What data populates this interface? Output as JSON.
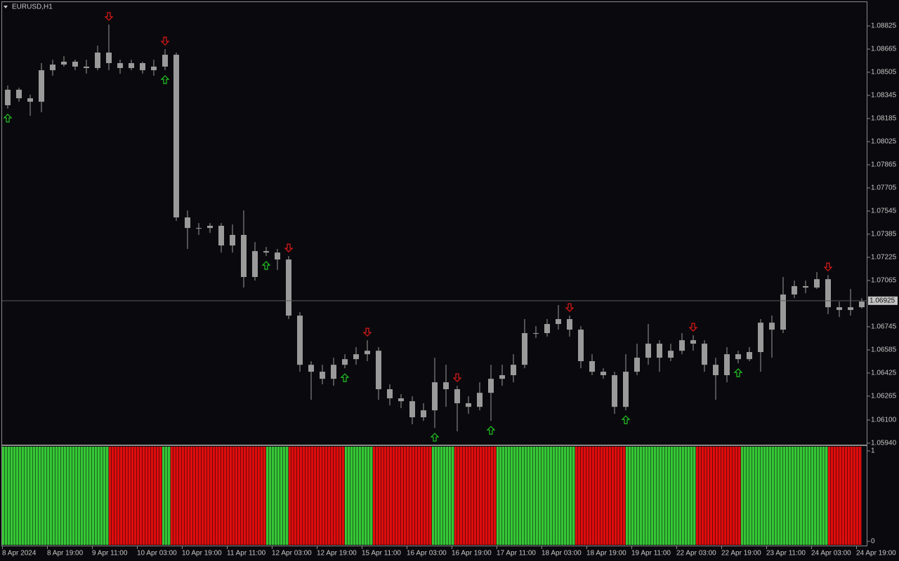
{
  "chart_data": [
    {
      "type": "candlestick",
      "title": "EURUSD,H1",
      "color": "#9a9a9a",
      "open": [
        1.08277,
        1.08384,
        1.08325,
        1.08301,
        1.08519,
        1.08558,
        1.08578,
        1.08544,
        1.08534,
        1.08641,
        1.08568,
        1.08534,
        1.08568,
        1.08519,
        1.08544,
        1.08626,
        1.07501,
        1.07428,
        1.07428,
        1.07443,
        1.07307,
        1.0738,
        1.07089,
        1.07268,
        1.07258,
        1.0721,
        1.06822,
        1.06482,
        1.06434,
        1.06385,
        1.06482,
        1.06521,
        1.06555,
        1.06579,
        1.06313,
        1.0625,
        1.0623,
        1.06119,
        1.06167,
        1.06361,
        1.06313,
        1.06216,
        1.06191,
        1.06288,
        1.06385,
        1.0641,
        1.06482,
        1.06701,
        1.06701,
        1.06764,
        1.06798,
        1.06725,
        1.06507,
        1.06434,
        1.0641,
        1.06191,
        1.06434,
        1.06531,
        1.06628,
        1.06531,
        1.06579,
        1.06652,
        1.06628,
        1.06482,
        1.0641,
        1.06555,
        1.06521,
        1.0657,
        1.06773,
        1.06725,
        1.06968,
        1.07026,
        1.07016,
        1.07074,
        1.0688,
        1.06861,
        1.0688
      ],
      "high": [
        1.08413,
        1.08398,
        1.0835,
        1.08568,
        1.08592,
        1.08616,
        1.08592,
        1.08592,
        1.08689,
        1.08835,
        1.08592,
        1.08592,
        1.08578,
        1.08592,
        1.08665,
        1.08641,
        1.07549,
        1.07462,
        1.07462,
        1.07462,
        1.07452,
        1.07549,
        1.07331,
        1.07297,
        1.07283,
        1.07234,
        1.06846,
        1.06507,
        1.06482,
        1.06531,
        1.06555,
        1.06604,
        1.06652,
        1.06604,
        1.06347,
        1.06279,
        1.06264,
        1.06216,
        1.06531,
        1.06482,
        1.06337,
        1.06264,
        1.06361,
        1.06482,
        1.06482,
        1.06555,
        1.06798,
        1.06749,
        1.06798,
        1.06895,
        1.06822,
        1.06749,
        1.06555,
        1.06458,
        1.06434,
        1.06555,
        1.06628,
        1.06764,
        1.06652,
        1.06628,
        1.06701,
        1.06686,
        1.06652,
        1.06531,
        1.06604,
        1.06579,
        1.06604,
        1.06798,
        1.06822,
        1.07089,
        1.07064,
        1.07064,
        1.07123,
        1.07103,
        1.06919,
        1.07006,
        1.06943
      ],
      "low": [
        1.08253,
        1.08301,
        1.08204,
        1.08228,
        1.08481,
        1.08544,
        1.08519,
        1.08495,
        1.08519,
        1.08519,
        1.08495,
        1.08519,
        1.08495,
        1.08481,
        1.08519,
        1.07477,
        1.07283,
        1.0738,
        1.07394,
        1.07258,
        1.07258,
        1.07016,
        1.07064,
        1.07234,
        1.07137,
        1.06798,
        1.06434,
        1.0624,
        1.06347,
        1.06337,
        1.06458,
        1.06482,
        1.06507,
        1.0624,
        1.06201,
        1.06182,
        1.0607,
        1.06094,
        1.06046,
        1.06191,
        1.06022,
        1.06143,
        1.06167,
        1.06094,
        1.06337,
        1.06361,
        1.06458,
        1.06667,
        1.06676,
        1.06725,
        1.06676,
        1.06458,
        1.0641,
        1.06385,
        1.06143,
        1.06167,
        1.0641,
        1.06482,
        1.06434,
        1.06507,
        1.06555,
        1.06579,
        1.06434,
        1.0624,
        1.06361,
        1.06492,
        1.06507,
        1.06434,
        1.06531,
        1.06701,
        1.06943,
        1.06977,
        1.07006,
        1.06832,
        1.06812,
        1.06822,
        1.06871
      ],
      "close": [
        1.08384,
        1.08325,
        1.08301,
        1.08519,
        1.08558,
        1.08578,
        1.08544,
        1.08534,
        1.08641,
        1.08568,
        1.08534,
        1.08568,
        1.08519,
        1.08544,
        1.08626,
        1.07501,
        1.07428,
        1.07428,
        1.07443,
        1.07307,
        1.0738,
        1.07089,
        1.07268,
        1.07258,
        1.0721,
        1.06822,
        1.06482,
        1.06434,
        1.06385,
        1.06482,
        1.06521,
        1.06555,
        1.06579,
        1.06313,
        1.0625,
        1.0623,
        1.06119,
        1.06167,
        1.06361,
        1.06313,
        1.06216,
        1.06191,
        1.06288,
        1.06385,
        1.0641,
        1.06482,
        1.06701,
        1.06701,
        1.06764,
        1.06798,
        1.06725,
        1.06507,
        1.06434,
        1.0641,
        1.06191,
        1.06434,
        1.06531,
        1.06628,
        1.06531,
        1.06579,
        1.06652,
        1.06628,
        1.06482,
        1.0641,
        1.06555,
        1.06521,
        1.0657,
        1.06773,
        1.06725,
        1.06968,
        1.07026,
        1.07016,
        1.07074,
        1.0688,
        1.06861,
        1.0688,
        1.06919
      ],
      "categories": [
        "8 Apr 2024",
        null,
        null,
        null,
        "8 Apr 19:00",
        null,
        null,
        null,
        "9 Apr 11:00",
        null,
        null,
        null,
        "10 Apr 03:00",
        null,
        null,
        null,
        "10 Apr 19:00",
        null,
        null,
        null,
        "11 Apr 11:00",
        null,
        null,
        null,
        "12 Apr 03:00",
        null,
        null,
        null,
        "12 Apr 19:00",
        null,
        null,
        null,
        "15 Apr 11:00",
        null,
        null,
        null,
        "16 Apr 03:00",
        null,
        null,
        null,
        "16 Apr 19:00",
        null,
        null,
        null,
        "17 Apr 11:00",
        null,
        null,
        null,
        "18 Apr 03:00",
        null,
        null,
        null,
        "18 Apr 19:00",
        null,
        null,
        null,
        "19 Apr 11:00",
        null,
        null,
        null,
        "22 Apr 03:00",
        null,
        null,
        null,
        "22 Apr 19:00",
        null,
        null,
        null,
        "23 Apr 11:00",
        null,
        null,
        null,
        "24 Apr 03:00",
        null,
        null,
        null,
        "24 Apr 19:00"
      ],
      "up_arrows": [
        0,
        14,
        23,
        30,
        38,
        43,
        55,
        65
      ],
      "up_color": "#22c422",
      "down_arrows": [
        9,
        14,
        25,
        32,
        40,
        50,
        61,
        73
      ],
      "down_color": "#e01818",
      "current_price": {
        "value": 1.06925,
        "label": "1.06925"
      },
      "ylim": [
        1.0593,
        1.0899
      ],
      "yticks": [
        1.08825,
        1.08665,
        1.08505,
        1.08345,
        1.08185,
        1.08025,
        1.07865,
        1.07705,
        1.07545,
        1.07385,
        1.07225,
        1.07065,
        1.06745,
        1.06585,
        1.06425,
        1.06265,
        {
          "value": 1.061,
          "label": "1.06100"
        },
        {
          "value": 1.0594,
          "label": "1.05940"
        }
      ]
    },
    {
      "type": "bar",
      "values": [
        1,
        1,
        1,
        1,
        1,
        1,
        1,
        1,
        1,
        1,
        1,
        1,
        1,
        1,
        1,
        1
      ],
      "counts": [
        38,
        19,
        3,
        34,
        8,
        20,
        10,
        21,
        8,
        15,
        28,
        18,
        25,
        16,
        31,
        12
      ],
      "colors": [
        "#35c735",
        "#e00c0c",
        "#35c735",
        "#e00c0c",
        "#35c735",
        "#e00c0c",
        "#35c735",
        "#e00c0c",
        "#35c735",
        "#e00c0c",
        "#35c735",
        "#e00c0c",
        "#35c735",
        "#e00c0c",
        "#35c735",
        "#e00c0c"
      ],
      "ylim": [
        0,
        1
      ],
      "yticks": [
        1,
        0
      ]
    }
  ]
}
